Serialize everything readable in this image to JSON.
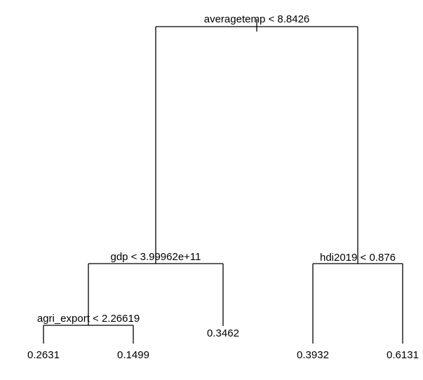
{
  "tree": {
    "root_split": "averagetemp < 8.8426",
    "left_split": "gdp < 3.99962e+11",
    "right_split": "hdi2019 < 0.876",
    "left_left_split": "agri_export < 2.26619",
    "leaves": {
      "ll_left": "0.2631",
      "ll_right": "0.1499",
      "l_right": "0.3462",
      "r_left": "0.3932",
      "r_right": "0.6131"
    }
  }
}
